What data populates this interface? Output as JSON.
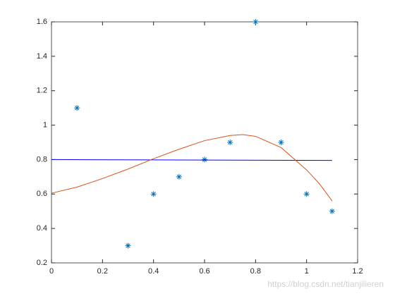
{
  "chart_data": {
    "type": "scatter",
    "xlim": [
      0,
      1.2
    ],
    "xticks": [
      0,
      0.2,
      0.4,
      0.6,
      0.8,
      1,
      1.2
    ],
    "ylim": [
      0.2,
      1.6
    ],
    "yticks": [
      0.2,
      0.4,
      0.6,
      0.8,
      1,
      1.2,
      1.4,
      1.6
    ],
    "box": true,
    "series": [
      {
        "type": "scatter",
        "marker": "asterisk",
        "color": "#0072BD",
        "x": [
          0.1,
          0.3,
          0.4,
          0.5,
          0.6,
          0.7,
          0.8,
          0.9,
          1.0,
          1.1
        ],
        "values": [
          1.1,
          0.3,
          0.6,
          0.7,
          0.8,
          0.9,
          1.6,
          0.9,
          0.6,
          0.5
        ]
      },
      {
        "type": "line",
        "color": "#0000FF",
        "x": [
          0,
          1.1
        ],
        "values": [
          0.8,
          0.795
        ]
      },
      {
        "type": "line",
        "color": "#D95319",
        "x": [
          0,
          0.1,
          0.2,
          0.3,
          0.4,
          0.5,
          0.6,
          0.7,
          0.75,
          0.8,
          0.9,
          1.0,
          1.05,
          1.1
        ],
        "values": [
          0.605,
          0.64,
          0.69,
          0.745,
          0.805,
          0.86,
          0.91,
          0.94,
          0.945,
          0.935,
          0.87,
          0.74,
          0.66,
          0.56
        ]
      }
    ],
    "watermark": "https://blog.csdn.net/tianjilieren"
  }
}
